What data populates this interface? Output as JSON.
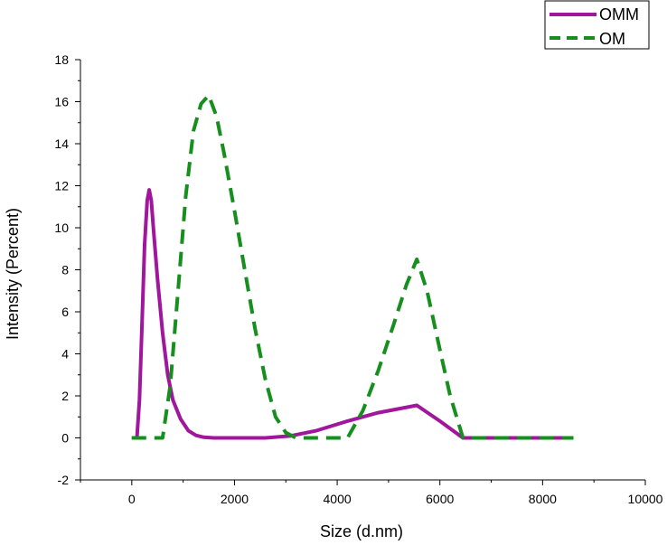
{
  "chart_data": {
    "type": "line",
    "title": "",
    "xlabel": "Size (d.nm)",
    "ylabel": "Intensity (Percent)",
    "xlim": [
      -1000,
      10000
    ],
    "ylim": [
      -2,
      18
    ],
    "xticks": [
      0,
      2000,
      4000,
      6000,
      8000,
      10000
    ],
    "yticks": [
      -2,
      0,
      2,
      4,
      6,
      8,
      10,
      12,
      14,
      16,
      18
    ],
    "x_tick_labels": [
      "0",
      "2000",
      "4000",
      "6000",
      "8000",
      "10000"
    ],
    "y_tick_labels": [
      "-2",
      "0",
      "2",
      "4",
      "6",
      "8",
      "10",
      "12",
      "14",
      "16",
      "18"
    ],
    "legend_position": "top-right",
    "series": [
      {
        "name": "OMM",
        "color": "#A0169C",
        "style": "solid",
        "x": [
          0,
          100,
          150,
          200,
          250,
          300,
          340,
          380,
          420,
          500,
          600,
          700,
          800,
          950,
          1100,
          1250,
          1400,
          1600,
          2000,
          2600,
          3100,
          3600,
          4200,
          4800,
          5550,
          6000,
          6450,
          7000,
          8000,
          8600
        ],
        "y": [
          0,
          0,
          1.8,
          5.5,
          9.2,
          11.3,
          11.8,
          11.3,
          10.0,
          7.6,
          5.0,
          3.0,
          1.8,
          0.9,
          0.35,
          0.12,
          0.03,
          0,
          0,
          0,
          0.1,
          0.35,
          0.8,
          1.2,
          1.55,
          0.8,
          0,
          0,
          0,
          0
        ]
      },
      {
        "name": "OM",
        "color": "#168F1E",
        "style": "dashed",
        "x": [
          0,
          600,
          750,
          900,
          1050,
          1200,
          1350,
          1500,
          1650,
          1800,
          2000,
          2200,
          2400,
          2600,
          2800,
          3000,
          3200,
          3500,
          4000,
          4200,
          4500,
          4800,
          5100,
          5350,
          5550,
          5750,
          6000,
          6200,
          6450,
          7000,
          8000,
          8600
        ],
        "y": [
          0,
          0,
          2.5,
          7.0,
          11.5,
          14.6,
          15.9,
          16.3,
          15.3,
          13.5,
          10.8,
          8.0,
          5.2,
          2.8,
          1.0,
          0.25,
          0,
          0,
          0,
          0,
          1.3,
          3.2,
          5.4,
          7.3,
          8.5,
          7.0,
          4.2,
          2.0,
          0,
          0,
          0,
          0
        ]
      }
    ]
  }
}
